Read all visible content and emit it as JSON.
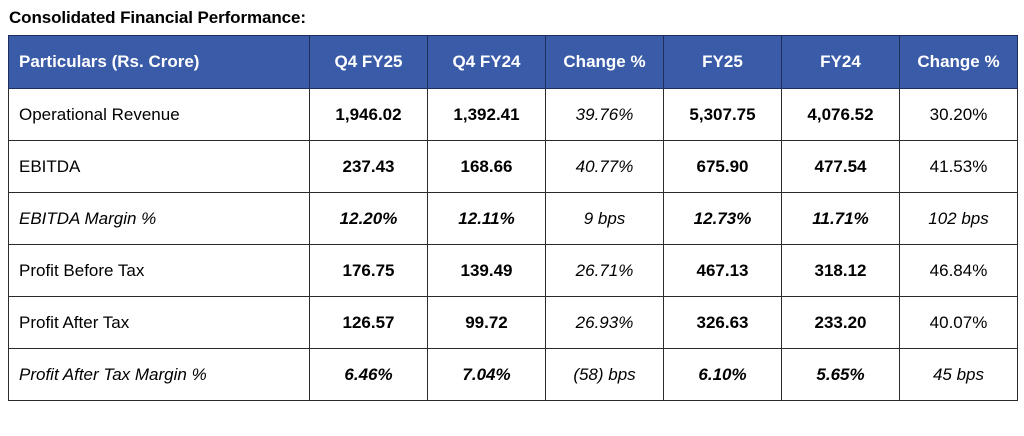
{
  "title": "Consolidated Financial Performance:",
  "headers": [
    "Particulars (Rs. Crore)",
    "Q4 FY25",
    "Q4 FY24",
    "Change %",
    "FY25",
    "FY24",
    "Change %"
  ],
  "rows": [
    {
      "label": "Operational Revenue",
      "q4fy25": "1,946.02",
      "q4fy24": "1,392.41",
      "chg_q": "39.76%",
      "fy25": "5,307.75",
      "fy24": "4,076.52",
      "chg_fy": "30.20%"
    },
    {
      "label": "EBITDA",
      "q4fy25": "237.43",
      "q4fy24": "168.66",
      "chg_q": "40.77%",
      "fy25": "675.90",
      "fy24": "477.54",
      "chg_fy": "41.53%"
    },
    {
      "label": "EBITDA Margin %",
      "q4fy25": "12.20%",
      "q4fy24": "12.11%",
      "chg_q": "9 bps",
      "fy25": "12.73%",
      "fy24": "11.71%",
      "chg_fy": "102 bps"
    },
    {
      "label": "Profit Before Tax",
      "q4fy25": "176.75",
      "q4fy24": "139.49",
      "chg_q": "26.71%",
      "fy25": "467.13",
      "fy24": "318.12",
      "chg_fy": "46.84%"
    },
    {
      "label": "Profit After Tax",
      "q4fy25": "126.57",
      "q4fy24": "99.72",
      "chg_q": "26.93%",
      "fy25": "326.63",
      "fy24": "233.20",
      "chg_fy": "40.07%"
    },
    {
      "label": "Profit After Tax Margin %",
      "q4fy25": "6.46%",
      "q4fy24": "7.04%",
      "chg_q": "(58) bps",
      "fy25": "6.10%",
      "fy24": "5.65%",
      "chg_fy": "45 bps"
    }
  ],
  "colors": {
    "header_bg": "#3a5ba8",
    "header_text": "#ffffff",
    "border": "#2b2b2b"
  }
}
